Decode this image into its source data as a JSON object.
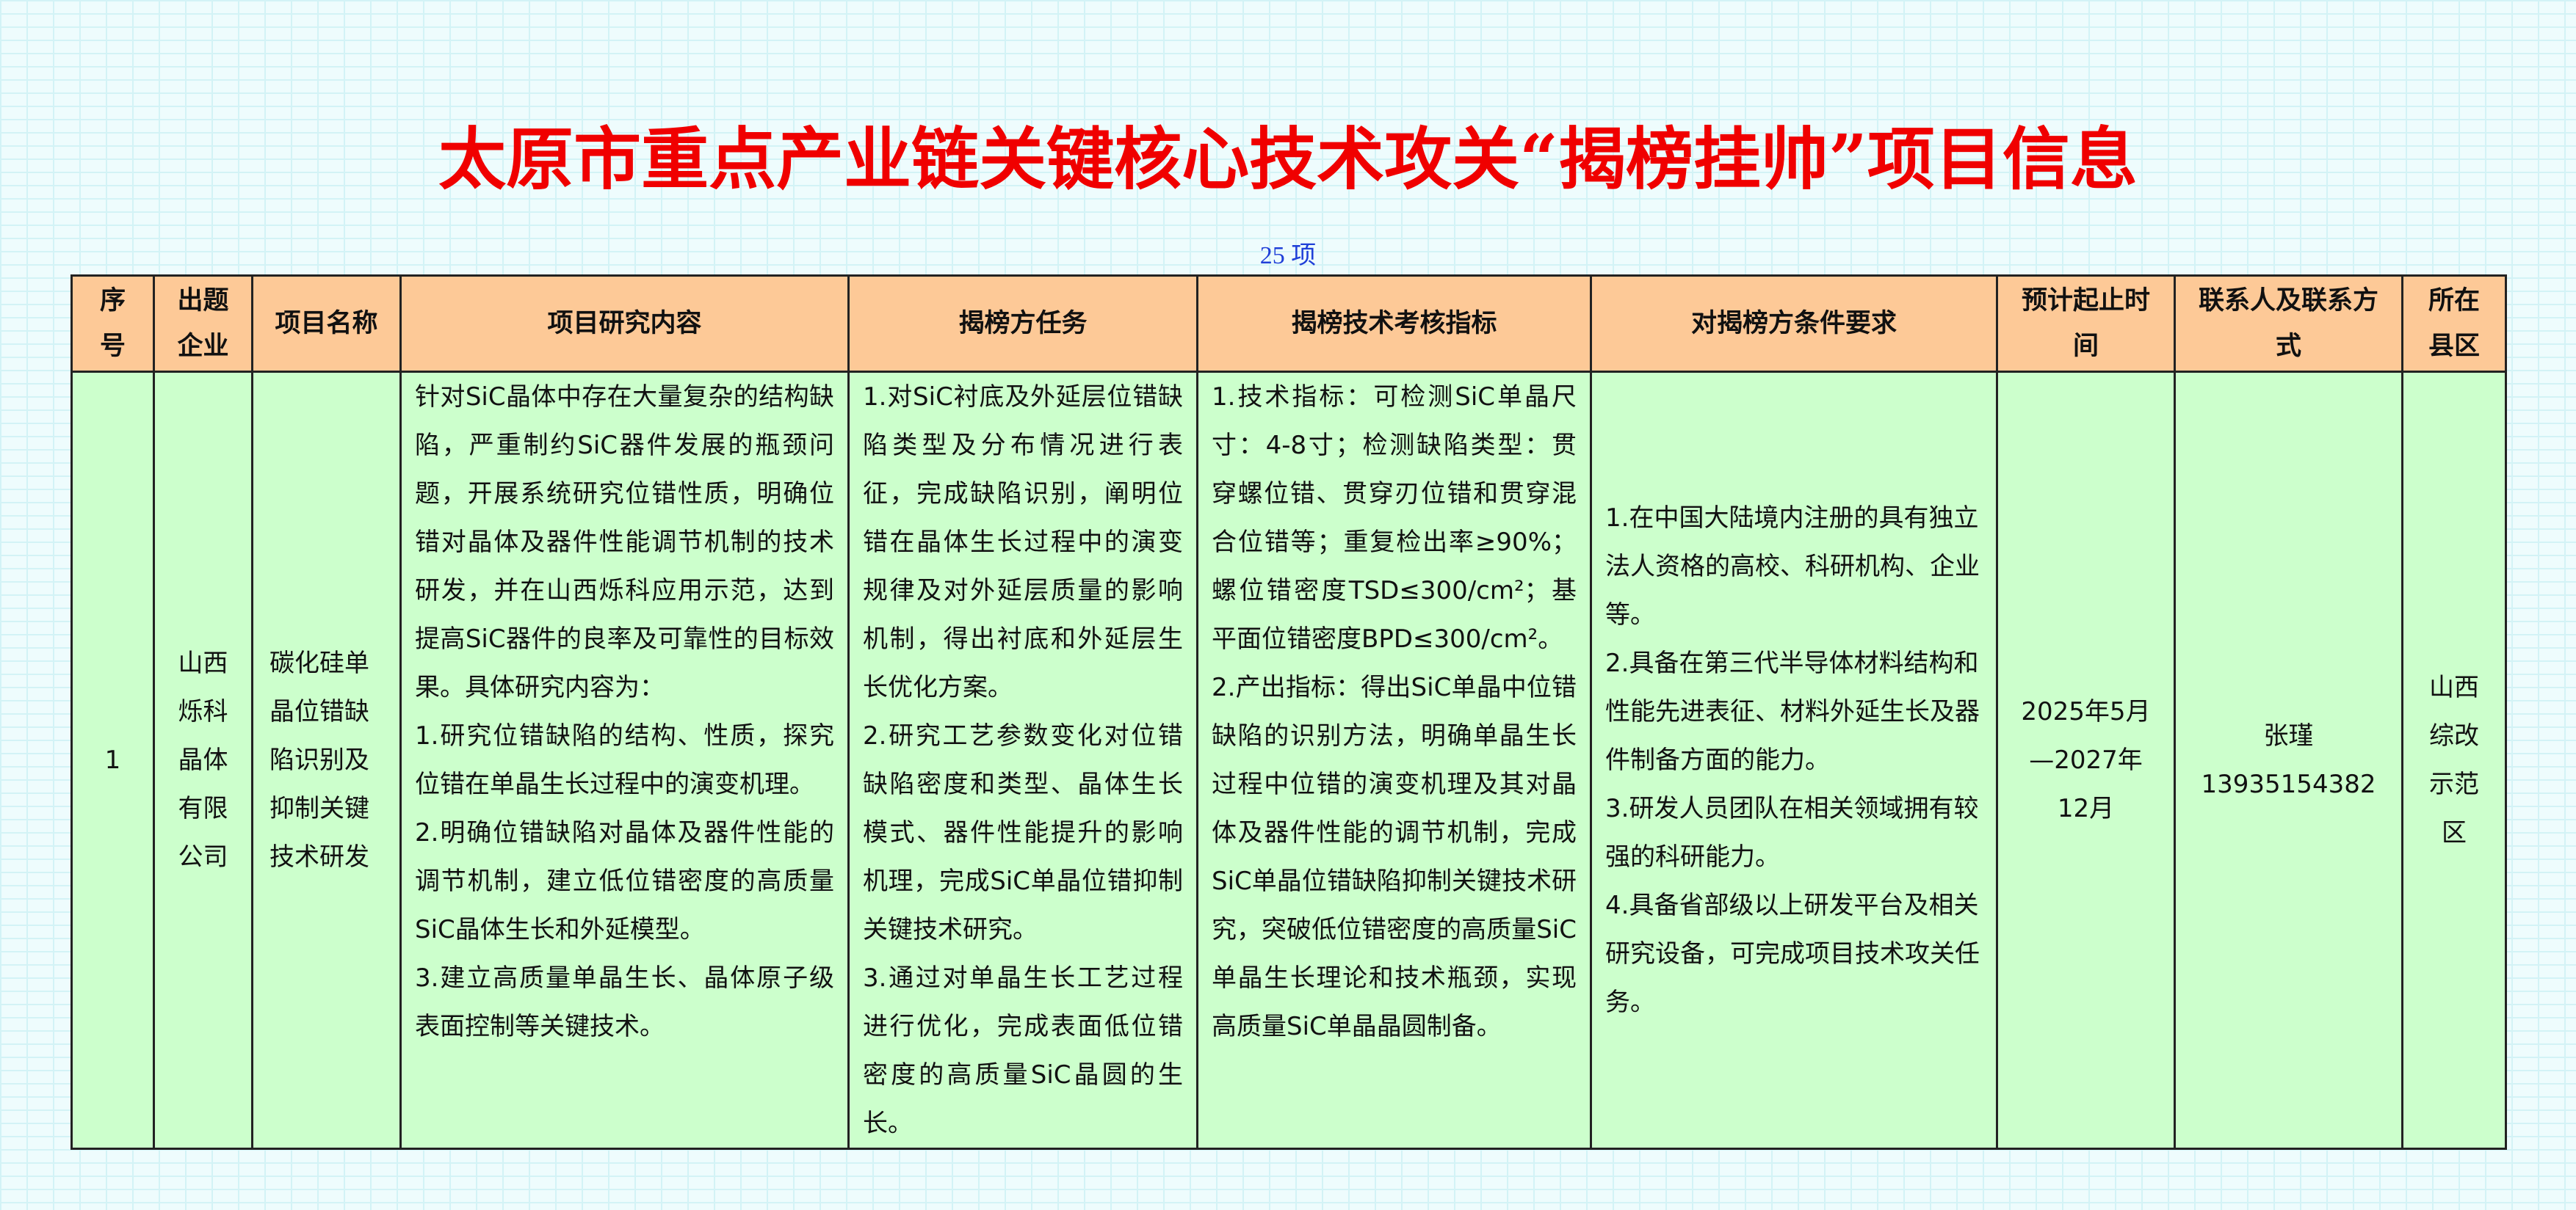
{
  "title": "太原市重点产业链关键核心技术攻关“揭榜挂帅”项目信息",
  "count": "25 项",
  "colors": {
    "title": "#f00000",
    "header_bg": "#fdc997",
    "body_bg": "#ccffcc",
    "count": "#1f3fd8"
  },
  "headers": [
    "序号",
    "出题企业",
    "项目名称",
    "项目研究内容",
    "揭榜方任务",
    "揭榜技术考核指标",
    "对揭榜方条件要求",
    "预计起止时间",
    "联系人及联系方式",
    "所在县区"
  ],
  "rows": [
    {
      "no": "1",
      "company": "山西烁科晶体有限公司",
      "project": "碳化硅单晶位错缺陷识别及抑制关键技术研发",
      "content": [
        "针对SiC晶体中存在大量复杂的结构缺陷，严重制约SiC器件发展的瓶颈问题，开展系统研究位错性质，明确位错对晶体及器件性能调节机制的技术研发，并在山西烁科应用示范，达到提高SiC器件的良率及可靠性的目标效果。具体研究内容为：",
        "1.研究位错缺陷的结构、性质，探究位错在单晶生长过程中的演变机理。",
        "2.明确位错缺陷对晶体及器件性能的调节机制，建立低位错密度的高质量SiC晶体生长和外延模型。",
        "3.建立高质量单晶生长、晶体原子级表面控制等关键技术。"
      ],
      "tasks": [
        "1.对SiC衬底及外延层位错缺陷类型及分布情况进行表征，完成缺陷识别，阐明位错在晶体生长过程中的演变规律及对外延层质量的影响机制，得出衬底和外延层生长优化方案。",
        "2.研究工艺参数变化对位错缺陷密度和类型、晶体生长模式、器件性能提升的影响机理，完成SiC单晶位错抑制关键技术研究。",
        "3.通过对单晶生长工艺过程进行优化，完成表面低位错密度的高质量SiC晶圆的生长。"
      ],
      "indicators": [
        "1.技术指标：可检测SiC单晶尺寸：4-8寸；检测缺陷类型：贯穿螺位错、贯穿刃位错和贯穿混合位错等；重复检出率≥90%；螺位错密度TSD≤300/cm²；基平面位错密度BPD≤300/cm²。",
        "2.产出指标：得出SiC单晶中位错缺陷的识别方法，明确单晶生长过程中位错的演变机理及其对晶体及器件性能的调节机制，完成SiC单晶位错缺陷抑制关键技术研究，突破低位错密度的高质量SiC单晶生长理论和技术瓶颈，实现高质量SiC单晶晶圆制备。"
      ],
      "requirements": [
        "1.在中国大陆境内注册的具有独立法人资格的高校、科研机构、企业等。",
        "2.具备在第三代半导体材料结构和性能先进表征、材料外延生长及器件制备方面的能力。",
        "3.研发人员团队在相关领域拥有较强的科研能力。",
        "4.具备省部级以上研发平台及相关研究设备，可完成项目技术攻关任务。"
      ],
      "period": "2025年5月—2027年12月",
      "contact_name": "张瑾",
      "contact_phone": "13935154382",
      "district": "山西综改示范区"
    }
  ]
}
